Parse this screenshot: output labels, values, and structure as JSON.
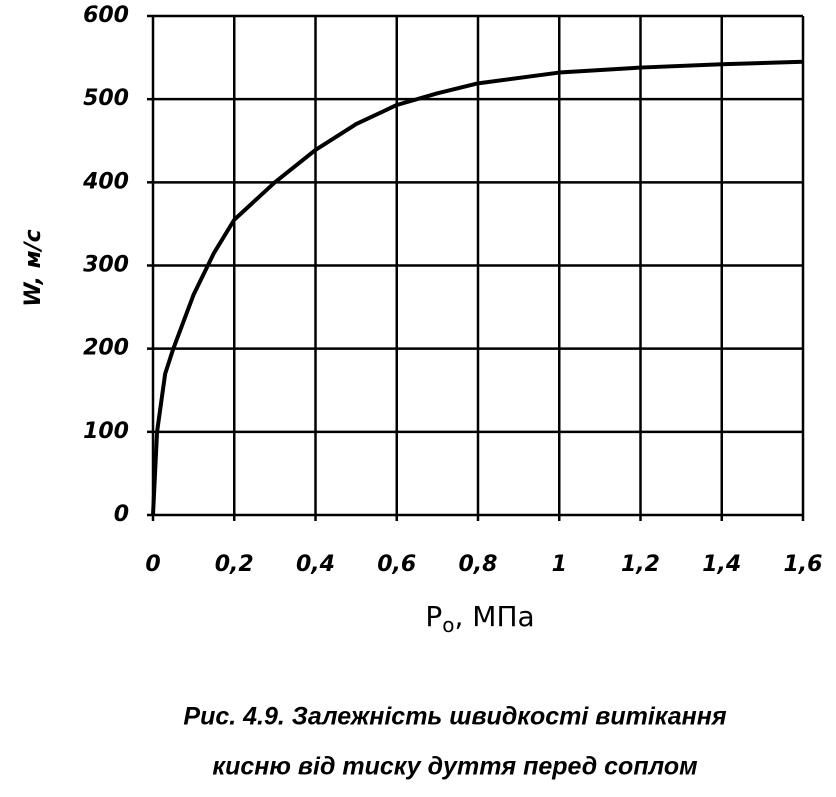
{
  "chart_data": {
    "type": "line",
    "y_label": "W, м/с",
    "x_label": {
      "main": "P",
      "sub": "o",
      "rest": ", МПа"
    },
    "caption": [
      "Рис. 4.9. Залежність швидкості витікання",
      "кисню від тиску дуття перед соплом"
    ],
    "x": [
      0,
      0.01,
      0.03,
      0.05,
      0.1,
      0.15,
      0.2,
      0.3,
      0.4,
      0.5,
      0.6,
      0.7,
      0.8,
      1.0,
      1.2,
      1.4,
      1.6
    ],
    "series": [
      {
        "color": "#000000",
        "values": [
          0,
          100,
          170,
          200,
          265,
          315,
          355,
          400,
          439,
          470,
          493,
          507,
          519,
          532,
          538,
          542,
          545
        ]
      }
    ],
    "xlim": [
      0,
      1.6
    ],
    "xticks": [
      0,
      {
        "value": 0.2,
        "label": "0,2"
      },
      {
        "value": 0.4,
        "label": "0,4"
      },
      {
        "value": 0.6,
        "label": "0,6"
      },
      {
        "value": 0.8,
        "label": "0,8"
      },
      1,
      {
        "value": 1.2,
        "label": "1,2"
      },
      {
        "value": 1.4,
        "label": "1,4"
      },
      {
        "value": 1.6,
        "label": "1,6"
      }
    ],
    "ylim": [
      0,
      600
    ],
    "yticks": [
      0,
      100,
      200,
      300,
      400,
      500,
      600
    ],
    "grid": true
  }
}
